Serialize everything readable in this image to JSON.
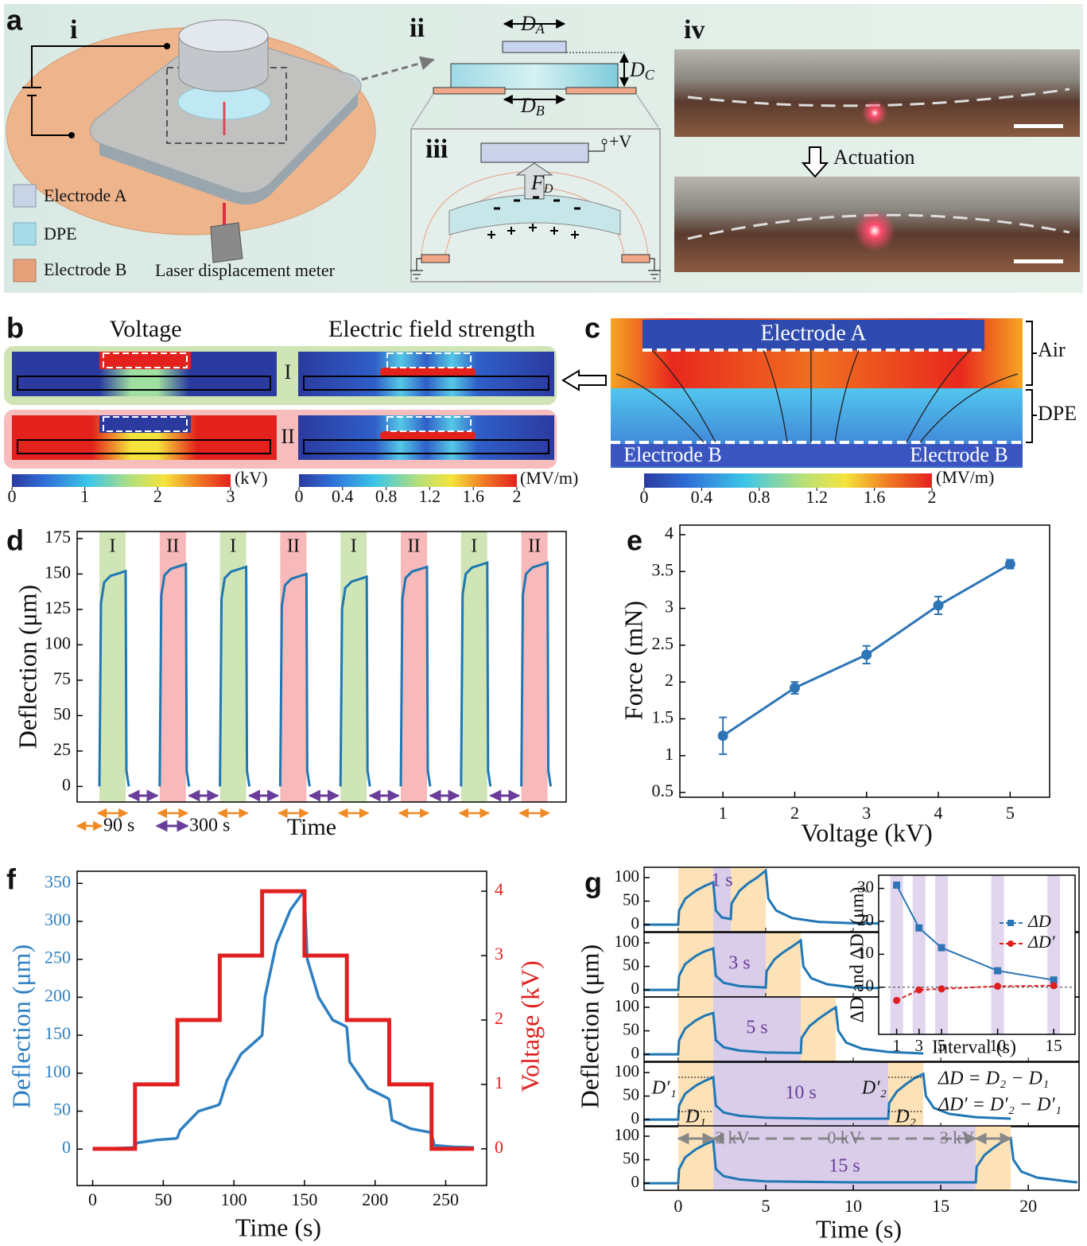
{
  "panel_labels": [
    "a",
    "b",
    "c",
    "d",
    "e",
    "f",
    "g"
  ],
  "a": {
    "sub_labels": [
      "i",
      "ii",
      "iii",
      "iv"
    ],
    "legend": [
      "Electrode A",
      "DPE",
      "Electrode B"
    ],
    "laser": "Laser displacement meter",
    "dims": [
      {
        "main": "D",
        "sub": "A"
      },
      {
        "main": "D",
        "sub": "C"
      },
      {
        "main": "D",
        "sub": "B"
      }
    ],
    "force": {
      "main": "F",
      "sub": "D"
    },
    "voltage": "+V",
    "actuation": "Actuation"
  },
  "b": {
    "titles": [
      "Voltage",
      "Electric field strength"
    ],
    "states": [
      "I",
      "II"
    ],
    "cbar_voltage": {
      "ticks": [
        0,
        1,
        2,
        3
      ],
      "unit": "(kV)"
    },
    "cbar_field": {
      "ticks": [
        0,
        0.4,
        0.8,
        1.2,
        1.6,
        2
      ],
      "unit": "(MV/m)"
    }
  },
  "c": {
    "labels": [
      "Electrode A",
      "Electrode B",
      "Electrode B"
    ],
    "regions": [
      "Air",
      "DPE"
    ],
    "cbar": {
      "ticks": [
        0,
        0.4,
        0.8,
        1.2,
        1.6,
        2
      ],
      "unit": "(MV/m)"
    }
  },
  "chart_data": [
    {
      "type": "line",
      "x_label": "Time",
      "y_label": "Deflection (μm)",
      "categories": [
        "I",
        "II",
        "I",
        "II",
        "I",
        "II",
        "I",
        "II"
      ],
      "values": [
        152,
        157,
        155,
        150,
        148,
        155,
        158,
        158
      ],
      "band_colors": [
        "#cfe5b5",
        "#f7b9b9",
        "#cfe5b5",
        "#f7b9b9",
        "#cfe5b5",
        "#f7b9b9",
        "#cfe5b5",
        "#f7b9b9"
      ],
      "color": "#1f77b4",
      "ylim": [
        -11,
        180
      ],
      "yticks": [
        0,
        25,
        50,
        75,
        100,
        125,
        150,
        175
      ],
      "annotations": [
        "90 s",
        "300 s"
      ],
      "annotation_colors": [
        "#f08a24",
        "#6a3d9a"
      ]
    },
    {
      "type": "line",
      "x_label": "Voltage (kV)",
      "y_label": "Force (mN)",
      "x": [
        1,
        2,
        3,
        4,
        5
      ],
      "values": [
        1.27,
        1.92,
        2.37,
        3.04,
        3.6
      ],
      "errors": [
        0.25,
        0.08,
        0.12,
        0.12,
        0.06
      ],
      "color": "#2e75b6",
      "xlim": [
        0.4,
        5.55
      ],
      "xticks": [
        1,
        2,
        3,
        4,
        5
      ],
      "ylim": [
        0.435,
        4.13
      ],
      "yticks": [
        0.5,
        1,
        1.5,
        2,
        2.5,
        3,
        3.5,
        4
      ]
    },
    {
      "type": "line",
      "x_label": "Time (s)",
      "y_label": "Deflection (μm)",
      "y2_label": "Voltage (kV)",
      "xlim": [
        -11,
        279
      ],
      "xticks": [
        0,
        50,
        100,
        150,
        200,
        250
      ],
      "ylim": [
        -48,
        366
      ],
      "yticks": [
        0,
        50,
        100,
        150,
        200,
        250,
        300,
        350
      ],
      "y2lim": [
        -0.57,
        4.31
      ],
      "y2ticks": [
        0,
        1,
        2,
        3,
        4
      ],
      "series": [
        {
          "color": "#2e7fc1",
          "x": [
            0,
            30,
            31,
            45,
            59,
            60,
            62,
            75,
            89,
            90,
            95,
            105,
            119,
            120,
            122,
            130,
            140,
            149,
            150,
            152,
            160,
            170,
            179,
            180,
            182,
            195,
            209,
            210,
            212,
            225,
            239,
            240,
            242,
            255,
            270
          ],
          "values": [
            0,
            2,
            8,
            12,
            14,
            15,
            25,
            50,
            58,
            60,
            90,
            125,
            148,
            150,
            200,
            270,
            315,
            338,
            335,
            250,
            200,
            170,
            162,
            160,
            115,
            80,
            67,
            65,
            38,
            27,
            22,
            20,
            5,
            3,
            2
          ]
        },
        {
          "color": "#e02020",
          "axis": "y2",
          "x": [
            0,
            30,
            30,
            60,
            60,
            90,
            90,
            120,
            120,
            150,
            150,
            180,
            180,
            210,
            210,
            240,
            240,
            270
          ],
          "values": [
            0,
            0,
            1,
            1,
            2,
            2,
            3,
            3,
            4,
            4,
            3,
            3,
            2,
            2,
            1,
            1,
            0,
            0
          ]
        }
      ]
    },
    {
      "type": "line",
      "x_label": "Time (s)",
      "y_label": "Deflection (μm)",
      "xlim": [
        -1.95,
        22.9
      ],
      "xticks": [
        0,
        5,
        10,
        15,
        20
      ],
      "ylim": [
        -15,
        122
      ],
      "yticks": [
        0,
        50,
        100
      ],
      "color": "#1f77b4",
      "interval_color": "#d9cdea",
      "pulse_color": "#fde2b8",
      "subplots": [
        {
          "interval": 1,
          "interval_label": "1 s",
          "x": [
            -2,
            0,
            0.05,
            0.4,
            1,
            1.5,
            2,
            2.15,
            2.5,
            3,
            3.05,
            3.5,
            4,
            4.5,
            5,
            5.15,
            5.6,
            6.5,
            8,
            10,
            14
          ],
          "values": [
            0,
            0,
            30,
            55,
            72,
            82,
            90,
            30,
            15,
            12,
            45,
            72,
            88,
            100,
            115,
            55,
            30,
            14,
            6,
            3,
            2
          ]
        },
        {
          "interval": 3,
          "interval_label": "3 s",
          "x": [
            -2,
            0,
            0.05,
            0.4,
            1,
            1.5,
            2,
            2.15,
            2.6,
            3.5,
            5,
            5.05,
            5.5,
            6,
            6.5,
            7,
            7.15,
            7.6,
            8.5,
            10,
            14
          ],
          "values": [
            0,
            0,
            30,
            55,
            72,
            82,
            88,
            30,
            15,
            8,
            5,
            40,
            65,
            80,
            92,
            105,
            50,
            25,
            12,
            5,
            2
          ]
        },
        {
          "interval": 5,
          "interval_label": "5 s",
          "x": [
            -2,
            0,
            0.05,
            0.4,
            1,
            1.5,
            2,
            2.15,
            2.6,
            3.5,
            5,
            7,
            7.05,
            7.5,
            8,
            8.5,
            9,
            9.15,
            9.6,
            10.5,
            12,
            14
          ],
          "values": [
            0,
            0,
            30,
            55,
            72,
            82,
            88,
            30,
            15,
            8,
            4,
            3,
            35,
            60,
            75,
            88,
            100,
            50,
            25,
            12,
            5,
            2
          ]
        },
        {
          "interval": 10,
          "interval_label": "10 s",
          "x": [
            -2,
            0,
            0.05,
            0.4,
            1,
            1.5,
            2,
            2.15,
            2.6,
            3.5,
            5,
            8,
            12,
            12.05,
            12.5,
            13,
            13.5,
            14,
            14.15,
            14.6,
            15.5,
            17,
            19
          ],
          "values": [
            0,
            0,
            30,
            55,
            72,
            82,
            90,
            30,
            15,
            8,
            4,
            2,
            2,
            35,
            60,
            75,
            88,
            97,
            50,
            25,
            12,
            5,
            2
          ]
        },
        {
          "interval": 15,
          "interval_label": "15 s",
          "x": [
            -2,
            0,
            0.05,
            0.4,
            1,
            1.5,
            2,
            2.15,
            2.6,
            3.5,
            5,
            10,
            17,
            17.05,
            17.5,
            18,
            18.5,
            19,
            19.15,
            19.6,
            20.5,
            22,
            22.8
          ],
          "values": [
            0,
            0,
            30,
            55,
            72,
            82,
            90,
            30,
            15,
            8,
            4,
            2,
            2,
            35,
            60,
            75,
            88,
            96,
            50,
            25,
            12,
            5,
            2
          ]
        }
      ],
      "annotations": [
        "3 kV",
        "0 kV",
        "3 kV"
      ],
      "d_labels": [
        "D′₁",
        "D₁",
        "D′₂",
        "D₂"
      ],
      "equations": [
        "ΔD = D₂ − D₁",
        "ΔD′ = D′₂ − D′₁"
      ]
    },
    {
      "type": "line",
      "x_label": "Interval (s)",
      "y_label": "ΔD and ΔD′ (μm)",
      "x": [
        1,
        3,
        5,
        10,
        15
      ],
      "series": [
        {
          "name": "ΔD",
          "color": "#2e75b6",
          "marker": "square",
          "values": [
            31,
            18,
            12,
            5,
            2.2
          ]
        },
        {
          "name": "ΔD′",
          "color": "#e02020",
          "marker": "circle",
          "values": [
            -4,
            -0.8,
            -0.5,
            0.3,
            0.5
          ]
        }
      ],
      "xlim": [
        -0.6,
        16.9
      ],
      "xticks": [
        1,
        3,
        5,
        10,
        15
      ],
      "ylim": [
        -14.3,
        34
      ],
      "yticks": [
        0,
        10,
        20,
        30
      ],
      "legend": "upper right",
      "band_color": "#e2d6ef"
    }
  ]
}
